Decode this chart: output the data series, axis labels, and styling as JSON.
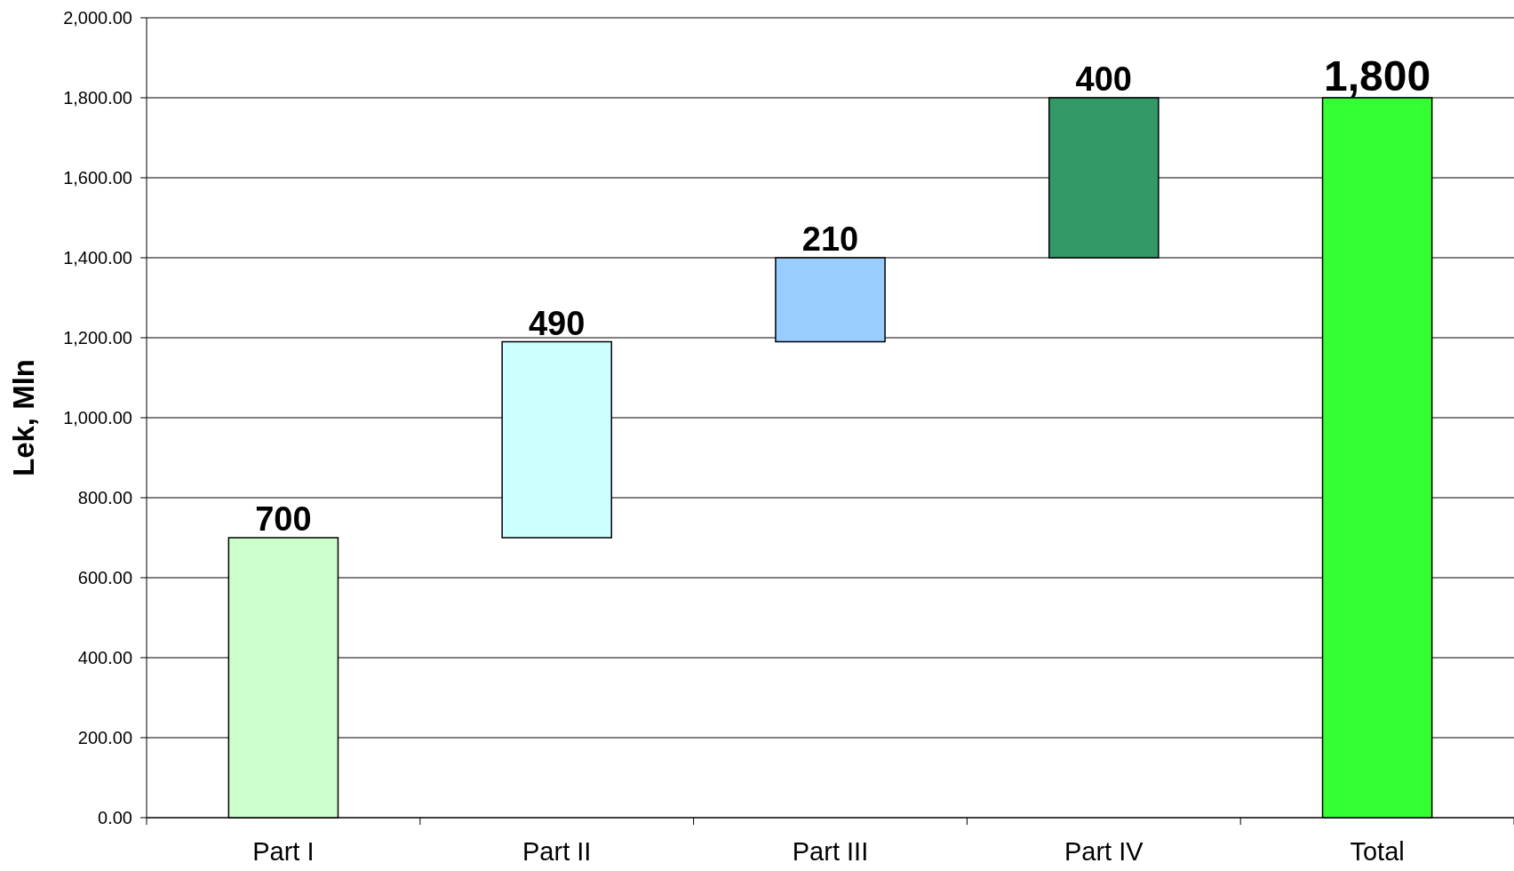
{
  "chart_data": {
    "type": "bar",
    "ylabel": "Lek, Mln",
    "categories": [
      "Part I",
      "Part II",
      "Part III",
      "Part IV",
      "Total"
    ],
    "values": [
      700,
      490,
      210,
      400,
      1800
    ],
    "base": [
      0,
      700,
      1190,
      1400,
      0
    ],
    "colors": [
      "#ccffcc",
      "#ccffff",
      "#99ccff",
      "#339966",
      "#33ff33"
    ],
    "value_labels": [
      "700",
      "490",
      "210",
      "400",
      "1,800"
    ],
    "ylim": [
      0,
      2000
    ],
    "yticks": [
      {
        "value": 0,
        "label": "0.00"
      },
      {
        "value": 200,
        "label": "200.00"
      },
      {
        "value": 400,
        "label": "400.00"
      },
      {
        "value": 600,
        "label": "600.00"
      },
      {
        "value": 800,
        "label": "800.00"
      },
      {
        "value": 1000,
        "label": "1,000.00"
      },
      {
        "value": 1200,
        "label": "1,200.00"
      },
      {
        "value": 1400,
        "label": "1,400.00"
      },
      {
        "value": 1600,
        "label": "1,600.00"
      },
      {
        "value": 1800,
        "label": "1,800.00"
      },
      {
        "value": 2000,
        "label": "2,000.00"
      }
    ],
    "grid": "y"
  }
}
